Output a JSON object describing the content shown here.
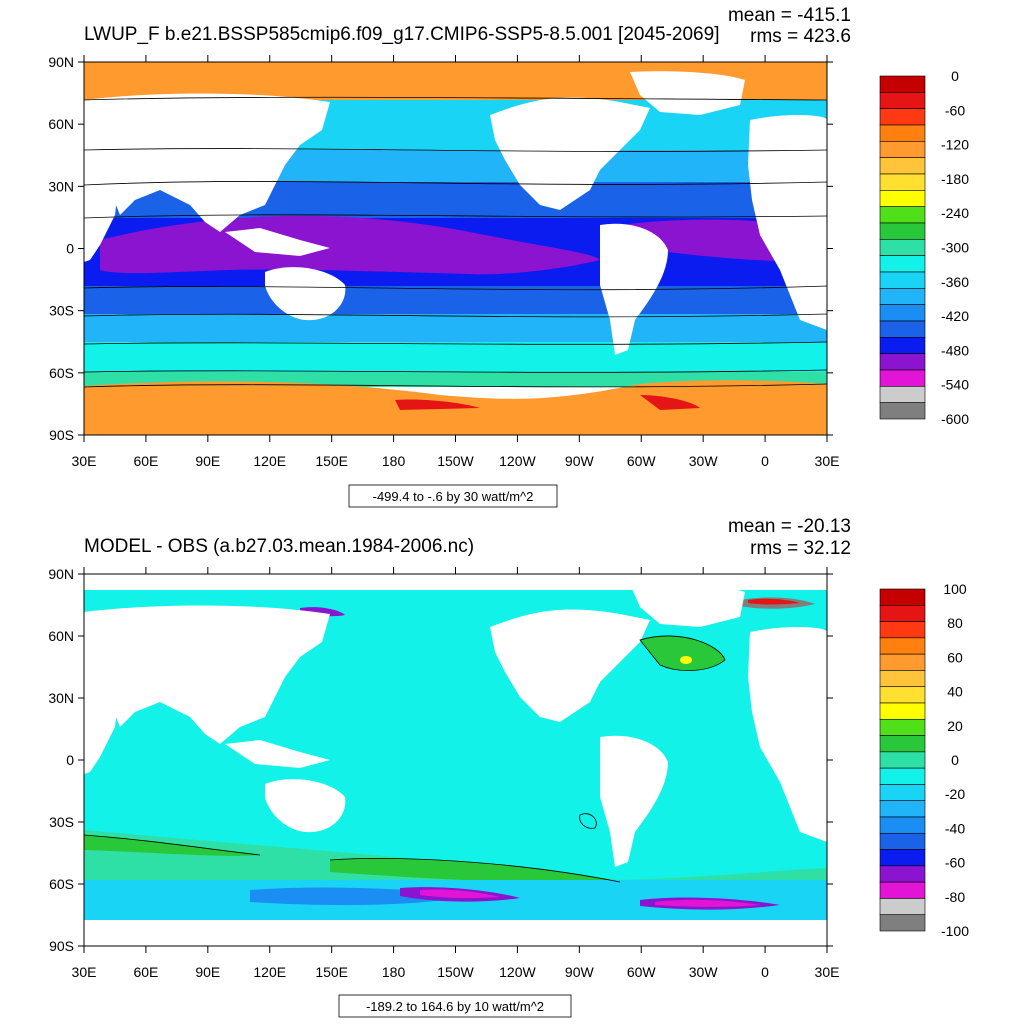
{
  "panels": [
    {
      "title": "LWUP_F b.e21.BSSP585cmip6.f09_g17.CMIP6-SSP5-8.5.001 [2045-2069]",
      "mean": "mean = -415.1",
      "rms": "rms = 423.6",
      "range": "-499.4 to -.6 by 30 watt/m^2",
      "lat_labels": [
        "90N",
        "60N",
        "30N",
        "0",
        "30S",
        "60S",
        "90S"
      ],
      "lon_labels": [
        "30E",
        "60E",
        "90E",
        "120E",
        "150E",
        "180",
        "150W",
        "120W",
        "90W",
        "60W",
        "30W",
        "0",
        "30E"
      ],
      "colorbar": {
        "labels": [
          "0",
          "-60",
          "-120",
          "-180",
          "-240",
          "-300",
          "-360",
          "-420",
          "-480",
          "-540",
          "-600"
        ],
        "colors": [
          "#c40000",
          "#e51515",
          "#ff3a12",
          "#ff7f0f",
          "#ff9a2e",
          "#ffc43a",
          "#ffe030",
          "#ffff00",
          "#4fe01a",
          "#29c83a",
          "#2ee0a6",
          "#12f2e8",
          "#1ad4f5",
          "#22b4f8",
          "#1a8ef2",
          "#1a63e8",
          "#0a1cf0",
          "#8a14d0",
          "#e214d6",
          "#cccccc",
          "#7f7f7f"
        ]
      },
      "field_colors": {
        "polar_n": "#ff9a2e",
        "high_n": "#1ad4f5",
        "mid_n": "#22b4f8",
        "sub_n": "#1a63e8",
        "trop": "#0a1cf0",
        "warm_pool": "#8a14d0",
        "sub_s": "#1a63e8",
        "mid_s": "#22b4f8",
        "south": "#12f2e8",
        "south2": "#2ee0a6",
        "ant_edge": "#ff9a2e",
        "ant_hot": "#e51515"
      }
    },
    {
      "title": "MODEL - OBS (a.b27.03.mean.1984-2006.nc)",
      "mean": "mean = -20.13",
      "rms": "rms = 32.12",
      "range": "-189.2 to 164.6 by 10 watt/m^2",
      "lat_labels": [
        "90N",
        "60N",
        "30N",
        "0",
        "30S",
        "60S",
        "90S"
      ],
      "lon_labels": [
        "30E",
        "60E",
        "90E",
        "120E",
        "150E",
        "180",
        "150W",
        "120W",
        "90W",
        "60W",
        "30W",
        "0",
        "30E"
      ],
      "colorbar": {
        "labels": [
          "100",
          "80",
          "60",
          "40",
          "20",
          "0",
          "-20",
          "-40",
          "-60",
          "-80",
          "-100"
        ],
        "colors": [
          "#c40000",
          "#e51515",
          "#ff3a12",
          "#ff7f0f",
          "#ff9a2e",
          "#ffc43a",
          "#ffe030",
          "#ffff00",
          "#4fe01a",
          "#29c83a",
          "#2ee0a6",
          "#12f2e8",
          "#1ad4f5",
          "#22b4f8",
          "#1a8ef2",
          "#1a63e8",
          "#0a1cf0",
          "#8a14d0",
          "#e214d6",
          "#cccccc",
          "#7f7f7f"
        ]
      },
      "field_colors": {
        "base": "#12f2e8",
        "band": "#2ee0a6",
        "green": "#29c83a",
        "deep": "#1ad4f5",
        "blue": "#1a8ef2",
        "purple": "#8a14d0",
        "magenta": "#e214d6",
        "gray": "#7f7f7f",
        "yellow": "#ffff00",
        "red": "#e51515"
      }
    }
  ]
}
